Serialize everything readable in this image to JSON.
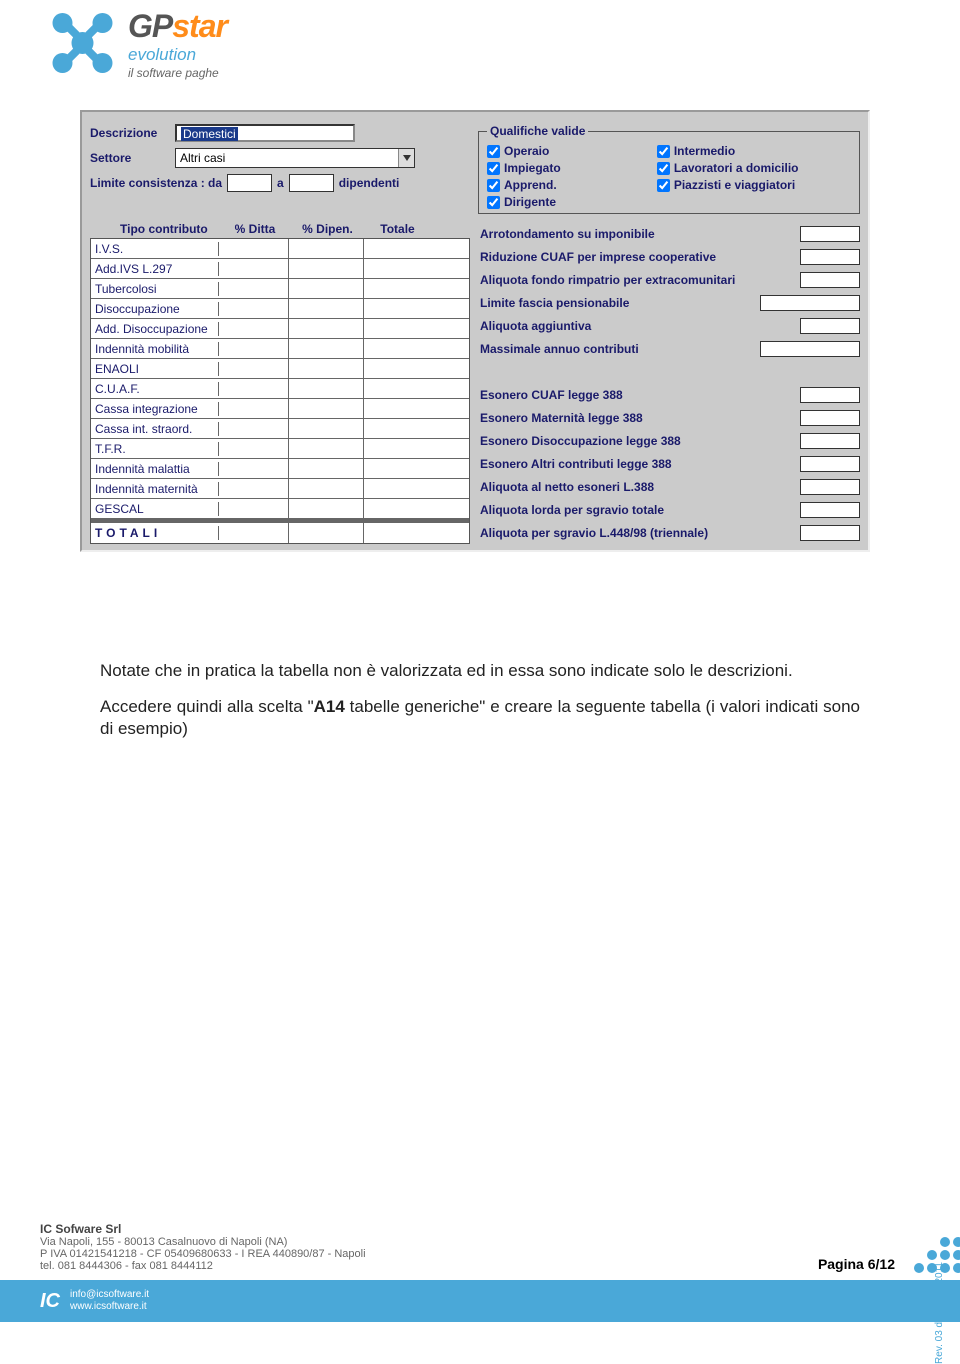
{
  "logo": {
    "brand_gp": "GP",
    "brand_star": "star",
    "sub1": "evolution",
    "sub2": "il software paghe",
    "mark_color": "#4aa8d8"
  },
  "form": {
    "descrizione_label": "Descrizione",
    "descrizione_value": "Domestici",
    "settore_label": "Settore",
    "settore_value": "Altri casi",
    "limite_label": "Limite consistenza : da",
    "limite_a": "a",
    "limite_tail": "dipendenti",
    "qualifiche_legend": "Qualifiche valide",
    "qualifiche": [
      {
        "label": "Operaio",
        "checked": true
      },
      {
        "label": "Intermedio",
        "checked": true
      },
      {
        "label": "Impiegato",
        "checked": true
      },
      {
        "label": "Lavoratori a domicilio",
        "checked": true
      },
      {
        "label": "Apprend.",
        "checked": true
      },
      {
        "label": "Piazzisti e viaggiatori",
        "checked": true
      },
      {
        "label": "Dirigente",
        "checked": true
      }
    ],
    "contrib_headers": {
      "c1": "Tipo contributo",
      "c2": "% Ditta",
      "c3": "% Dipen.",
      "c4": "Totale"
    },
    "contrib_rows": [
      "I.V.S.",
      "Add.IVS L.297",
      "Tubercolosi",
      "Disoccupazione",
      "Add. Disoccupazione",
      "Indennità mobilità",
      "ENAOLI",
      "C.U.A.F.",
      "Cassa integrazione",
      "Cassa int. straord.",
      "T.F.R.",
      "Indennità malattia",
      "Indennità maternità",
      "GESCAL"
    ],
    "contrib_total": "TOTALI",
    "params": [
      {
        "label": "Arrotondamento su imponibile",
        "wide": false
      },
      {
        "label": "Riduzione CUAF per imprese cooperative",
        "wide": false
      },
      {
        "label": "Aliquota fondo rimpatrio per extracomunitari",
        "wide": false
      },
      {
        "label": "Limite fascia pensionabile",
        "wide": true
      },
      {
        "label": "Aliquota aggiuntiva",
        "wide": false
      },
      {
        "label": "Massimale annuo contributi",
        "wide": true
      },
      {
        "label": "",
        "wide": false,
        "blank": true
      },
      {
        "label": "Esonero CUAF legge 388",
        "wide": false
      },
      {
        "label": "Esonero Maternità legge 388",
        "wide": false
      },
      {
        "label": "Esonero Disoccupazione legge 388",
        "wide": false
      },
      {
        "label": "Esonero Altri contributi legge 388",
        "wide": false
      },
      {
        "label": "Aliquota al netto esoneri L.388",
        "wide": false
      },
      {
        "label": "Aliquota lorda per sgravio totale",
        "wide": false
      },
      {
        "label": "Aliquota per sgravio L.448/98 (triennale)",
        "wide": false
      }
    ]
  },
  "body": {
    "p1": "Notate che in pratica la tabella non è valorizzata ed in essa sono indicate solo le descrizioni.",
    "p2a": "Accedere quindi alla scelta \"",
    "p2b": "A14",
    "p2c": " tabelle generiche\" e creare la seguente tabella (i valori indicati sono di esempio)"
  },
  "footer": {
    "company": "IC Sofware Srl",
    "addr": "Via Napoli, 155 - 80013 Casalnuovo di Napoli (NA)",
    "vat": "P IVA 01421541218 - CF 05409680633 - I REA 440890/87 - Napoli",
    "tel": "tel. 081 8444306 - fax 081 8444112",
    "page_label": "Pagina ",
    "page_current": "6",
    "page_sep": "/",
    "page_total": "12",
    "rev": "Rev. 03 del 06/09/2011",
    "email": "info@icsoftware.it",
    "web": "www.icsoftware.it"
  },
  "colors": {
    "panel_bg": "#cbcbcb",
    "label_color": "#1a1a6a",
    "accent": "#4aa8d8",
    "orange": "#ff8c1a"
  }
}
